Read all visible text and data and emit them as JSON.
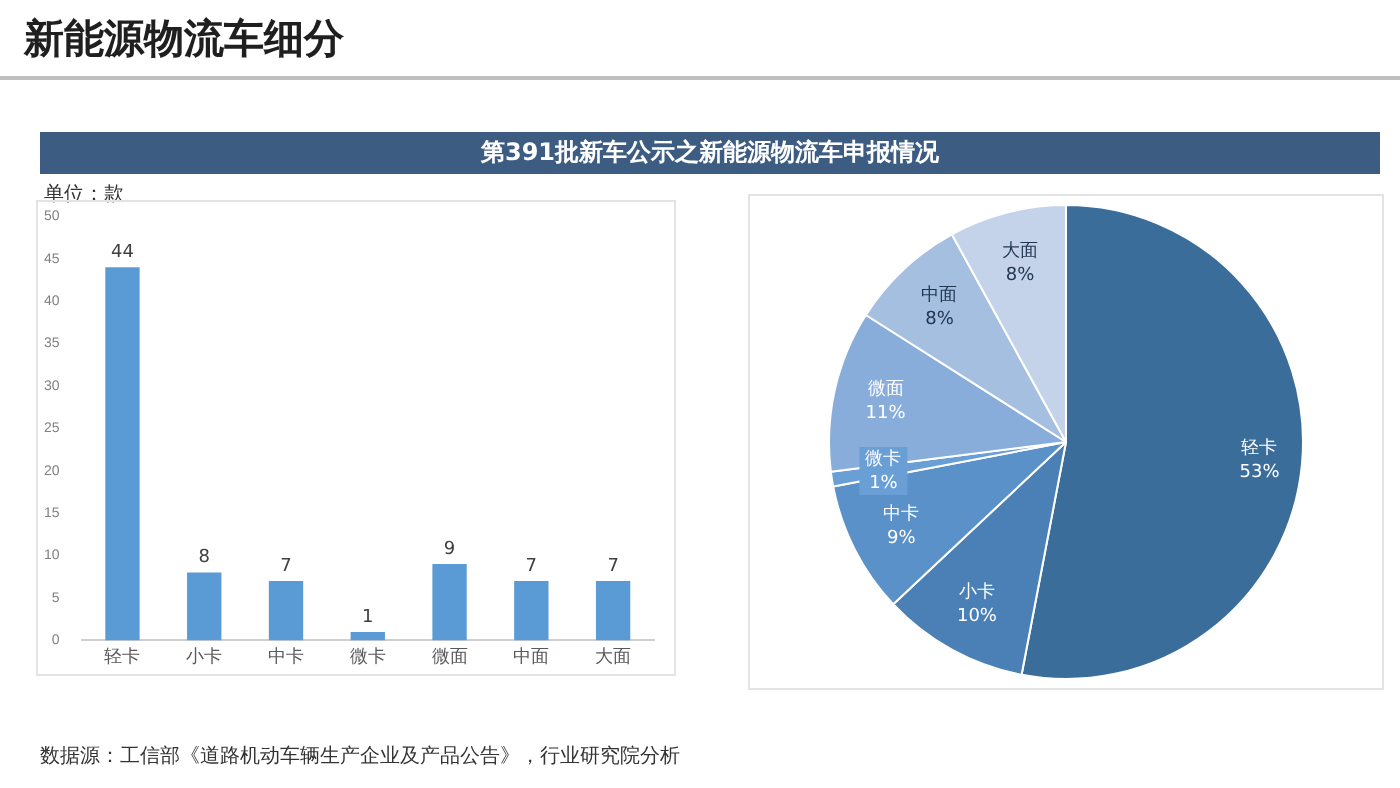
{
  "chart_data": [
    {
      "type": "bar",
      "title": "新能源物流车细分",
      "subtitle": "第391批新车公示之新能源物流车申报情况",
      "ylabel": "单位：款",
      "categories": [
        "轻卡",
        "小卡",
        "中卡",
        "微卡",
        "微面",
        "中面",
        "大面"
      ],
      "values": [
        44,
        8,
        7,
        1,
        9,
        7,
        7
      ],
      "color": "#5b9bd5",
      "ylim": [
        0,
        50
      ],
      "yticks": [
        0,
        5,
        10,
        15,
        20,
        25,
        30,
        35,
        40,
        45,
        50
      ],
      "grid": false,
      "data_labels": true,
      "annotations": [
        "数据源：工信部《道路机动车辆生产企业及产品公告》，行业研究院分析"
      ]
    },
    {
      "type": "pie",
      "categories": [
        "轻卡",
        "小卡",
        "中卡",
        "微卡",
        "微面",
        "中面",
        "大面"
      ],
      "values": [
        53,
        10,
        9,
        1,
        11,
        8,
        8
      ],
      "colors": [
        "#3b6d9b",
        "#4a80b6",
        "#5b91c9",
        "#6a9fd6",
        "#89addb",
        "#a5bfe0",
        "#c4d3ea"
      ],
      "value_labels": [
        "53%",
        "10%",
        "9%",
        "1%",
        "11%",
        "8%",
        "8%"
      ]
    }
  ]
}
